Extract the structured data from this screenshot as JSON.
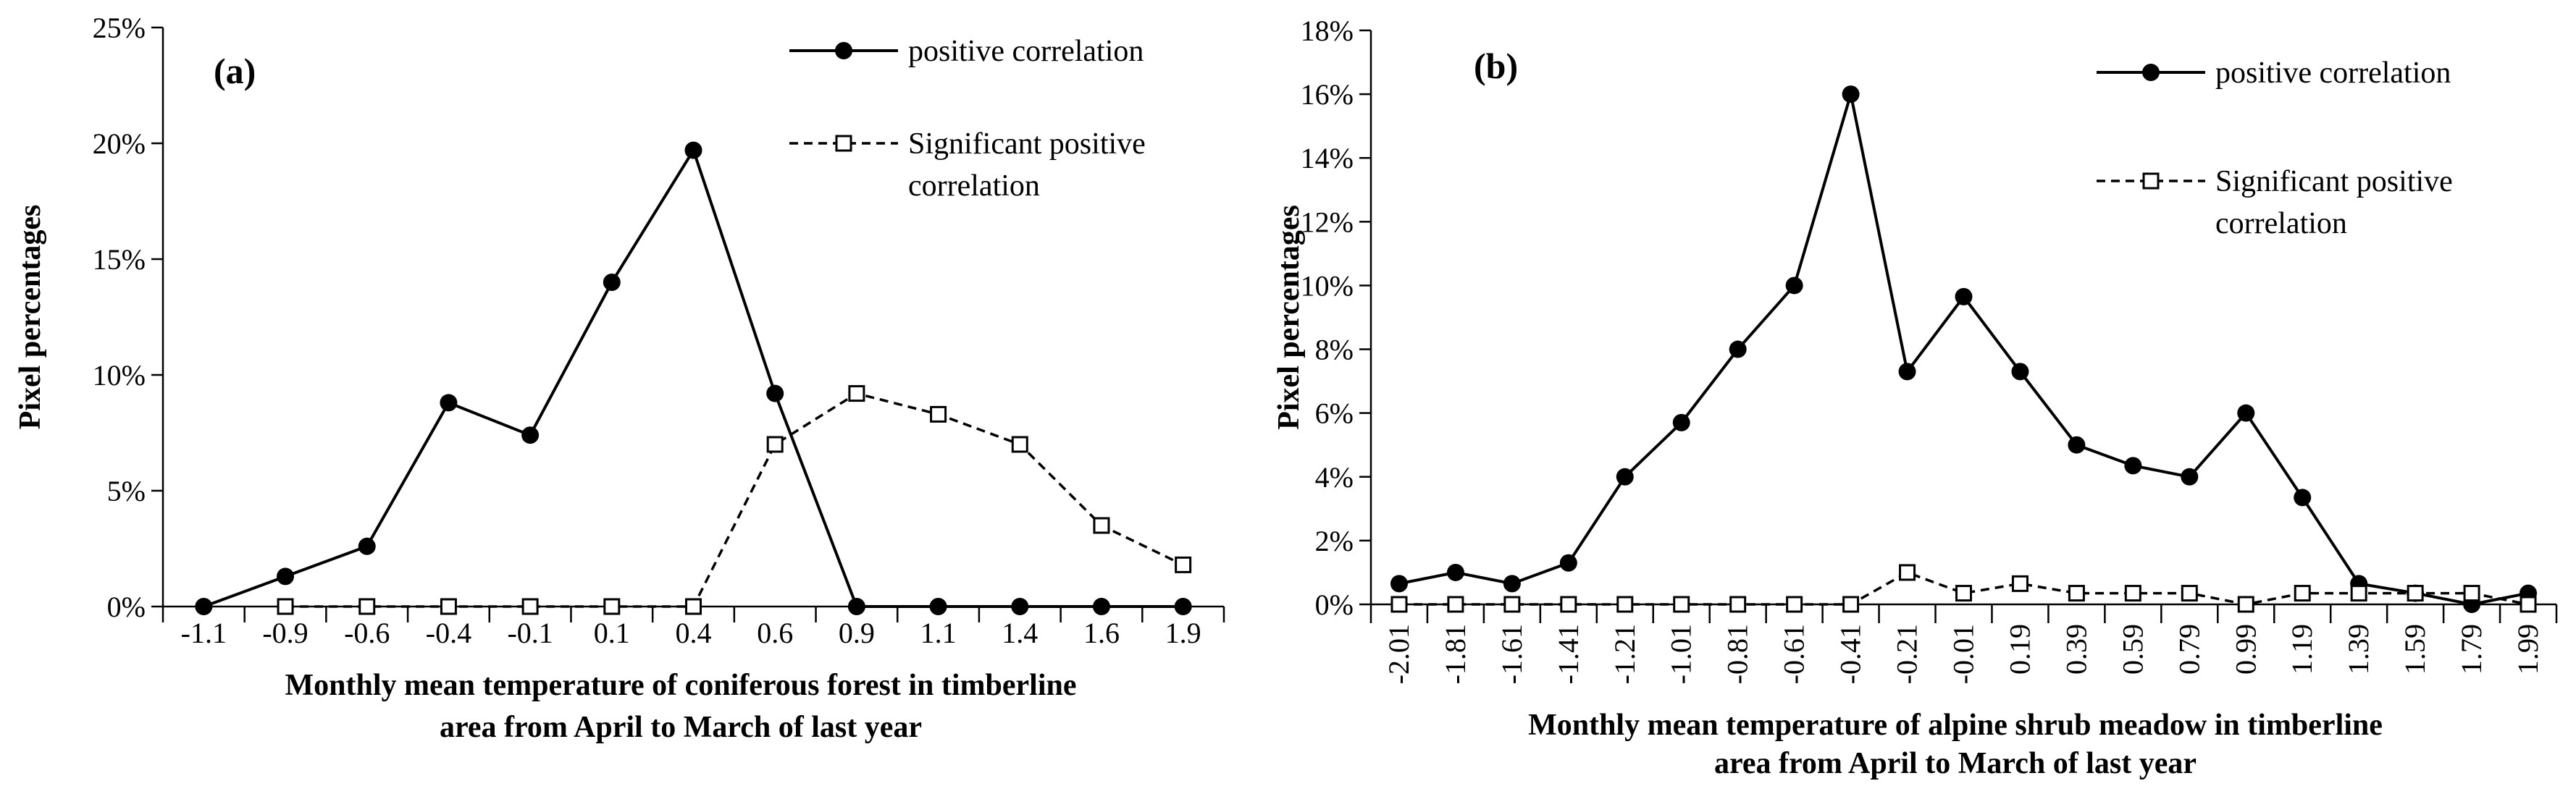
{
  "chart_data": [
    {
      "type": "line",
      "panel_label": "(a)",
      "categories": [
        "-1.1",
        "-0.9",
        "-0.6",
        "-0.4",
        "-0.1",
        "0.1",
        "0.4",
        "0.6",
        "0.9",
        "1.1",
        "1.4",
        "1.6",
        "1.9"
      ],
      "series": [
        {
          "name": "positive correlation",
          "marker": "filled-circle",
          "style": "solid",
          "values": [
            0,
            1.3,
            2.6,
            8.8,
            7.4,
            14.0,
            19.7,
            9.2,
            0,
            0,
            0,
            0,
            0
          ]
        },
        {
          "name": "Significant positive correlation",
          "name_lines": [
            "Significant positive",
            "correlation"
          ],
          "marker": "open-square",
          "style": "dashed",
          "values": [
            null,
            0,
            0,
            0,
            0,
            0,
            0,
            7.0,
            9.2,
            8.3,
            7.0,
            3.5,
            1.8
          ]
        }
      ],
      "ylabel": "Pixel percentages",
      "ylim": [
        0,
        25
      ],
      "yticks": [
        0,
        5,
        10,
        15,
        20,
        25
      ],
      "ytick_labels": [
        "0%",
        "5%",
        "10%",
        "15%",
        "20%",
        "25%"
      ],
      "xlabel_lines": [
        "Monthly  mean temperature  of coniferous forest  in  timberline",
        "area from April  to March of last year"
      ],
      "legend": "top-right"
    },
    {
      "type": "line",
      "panel_label": "(b)",
      "categories": [
        "-2.01",
        "-1.81",
        "-1.61",
        "-1.41",
        "-1.21",
        "-1.01",
        "-0.81",
        "-0.61",
        "-0.41",
        "-0.21",
        "-0.01",
        "0.19",
        "0.39",
        "0.59",
        "0.79",
        "0.99",
        "1.19",
        "1.39",
        "1.59",
        "1.79",
        "1.99"
      ],
      "series": [
        {
          "name": "positive correlation",
          "marker": "filled-circle",
          "style": "solid",
          "values": [
            0.65,
            1.0,
            0.65,
            1.3,
            4.0,
            5.7,
            8.0,
            10.0,
            16.0,
            7.3,
            9.65,
            7.3,
            5.0,
            4.35,
            4.0,
            6.0,
            3.35,
            0.65,
            0.35,
            0,
            0.35
          ]
        },
        {
          "name": "Significant positive correlation",
          "name_lines": [
            "Significant positive",
            "correlation"
          ],
          "marker": "open-square",
          "style": "dashed",
          "values": [
            0,
            0,
            0,
            0,
            0,
            0,
            0,
            0,
            0,
            1.0,
            0.35,
            0.65,
            0.35,
            0.35,
            0.35,
            0,
            0.35,
            0.35,
            0.35,
            0.35,
            0
          ]
        }
      ],
      "ylabel": "Pixel percentages",
      "ylim": [
        0,
        18
      ],
      "yticks": [
        0,
        2,
        4,
        6,
        8,
        10,
        12,
        14,
        16,
        18
      ],
      "ytick_labels": [
        "0%",
        "2%",
        "4%",
        "6%",
        "8%",
        "10%",
        "12%",
        "14%",
        "16%",
        "18%"
      ],
      "xlabel_lines": [
        "Monthly  mean temperature  of alpine shrub  meadow in timberline",
        "area from April  to March of last year"
      ],
      "legend": "top-right"
    }
  ]
}
